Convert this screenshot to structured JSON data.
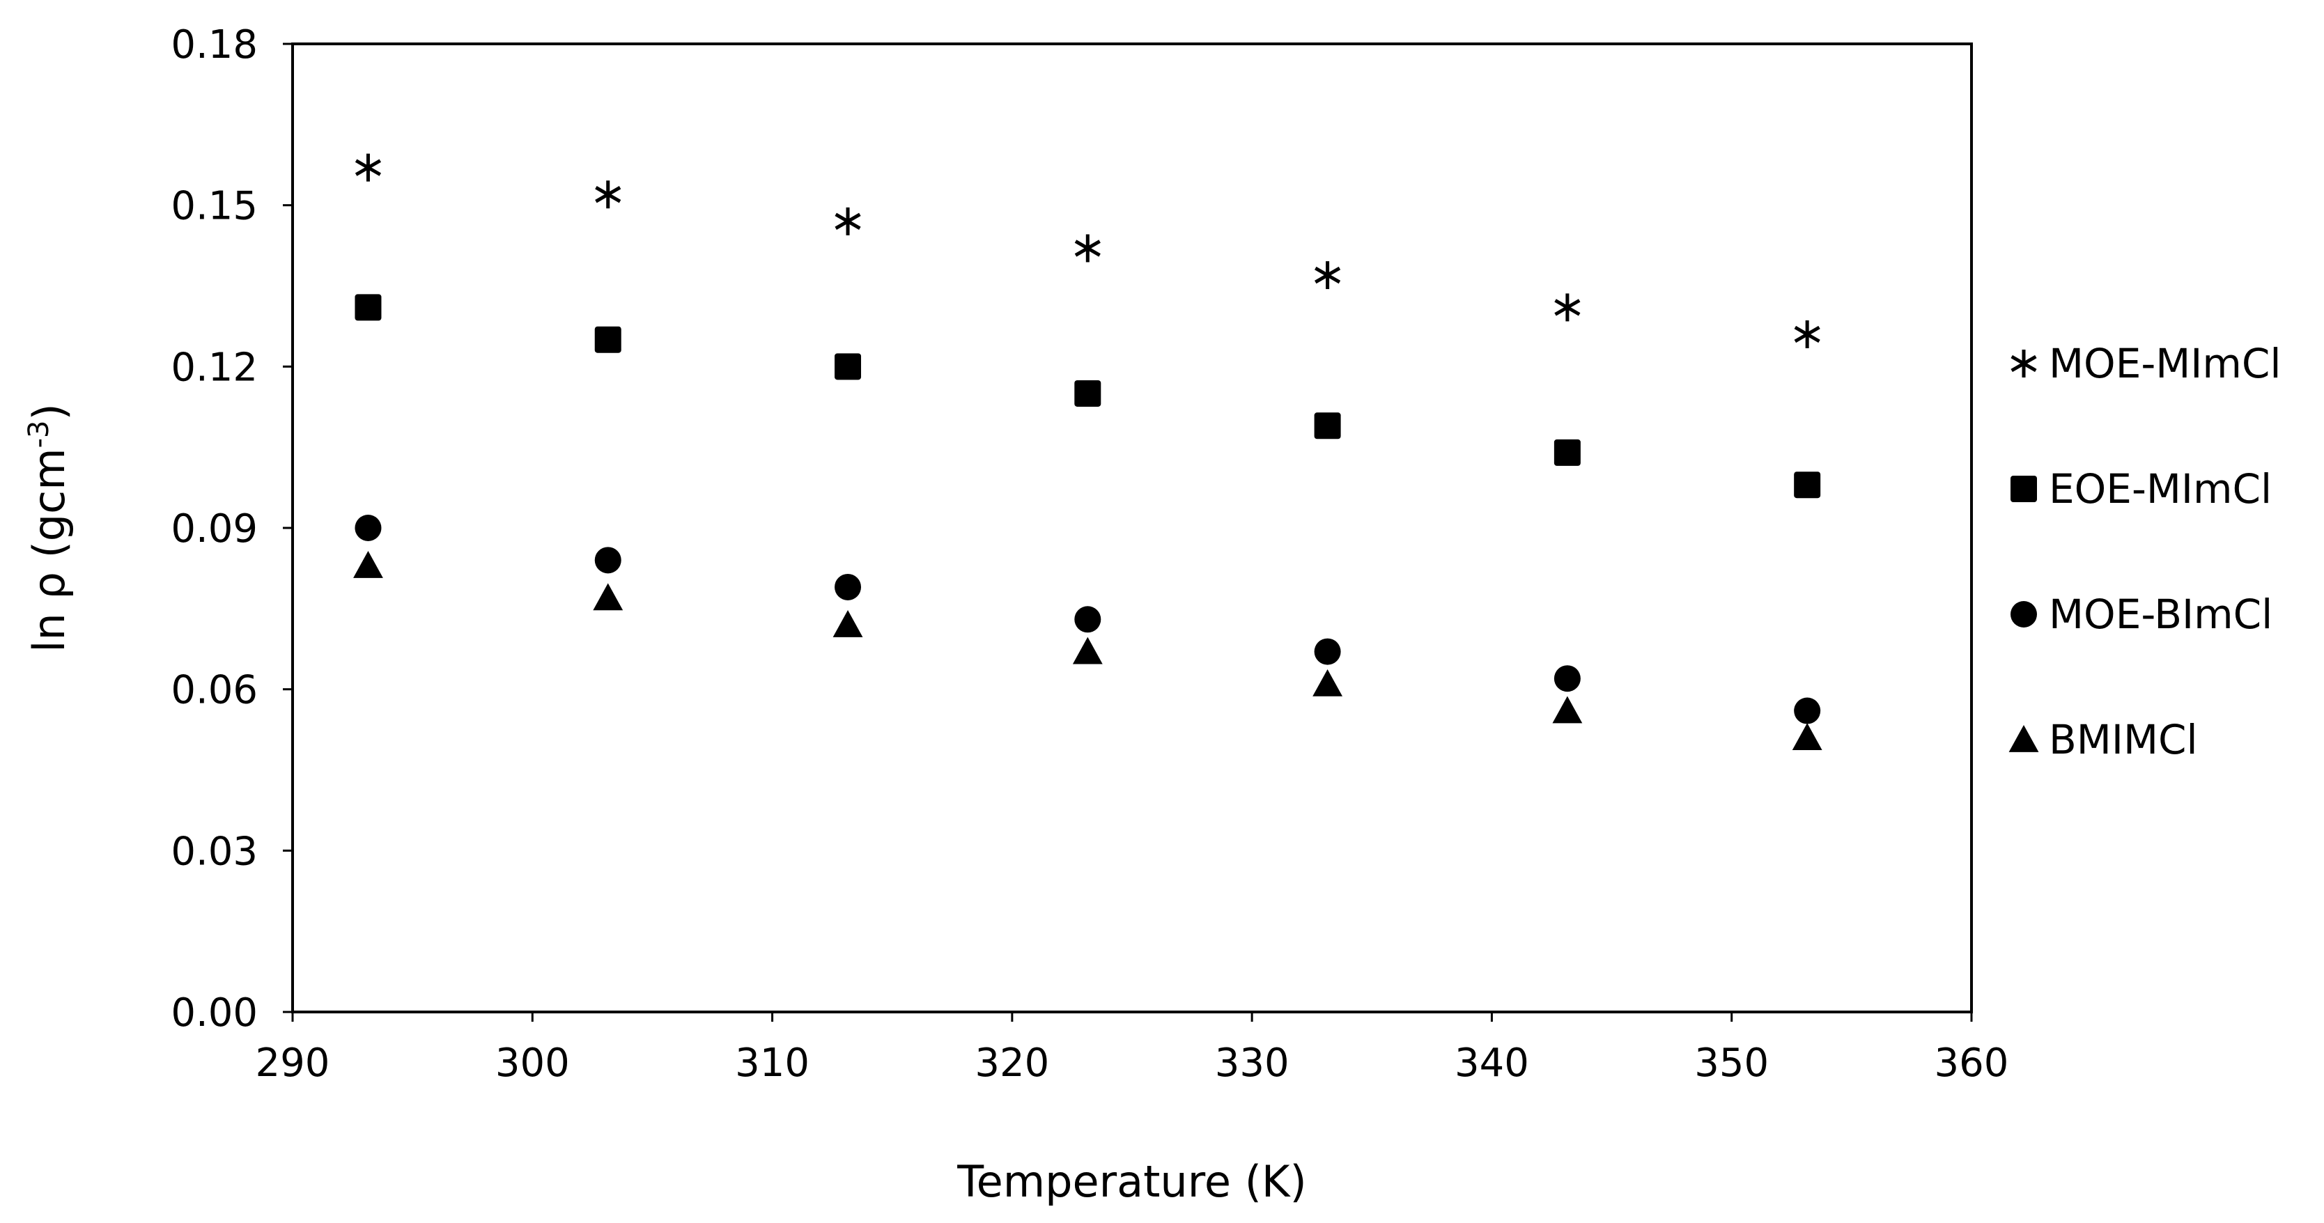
{
  "chart_data": {
    "type": "scatter",
    "title": "",
    "xlabel": "Temperature (K)",
    "ylabel": {
      "base": "ln ρ (gcm",
      "superscript": "-3",
      "suffix": ")"
    },
    "xlim": [
      290,
      360
    ],
    "ylim": [
      0,
      0.18
    ],
    "xticks": [
      290,
      300,
      310,
      320,
      330,
      340,
      350,
      360
    ],
    "yticks": [
      0.0,
      0.03,
      0.06,
      0.09,
      0.12,
      0.15,
      0.18
    ],
    "ytick_labels": [
      "0.00",
      "0.03",
      "0.06",
      "0.09",
      "0.12",
      "0.15",
      "0.18"
    ],
    "xtick_labels": [
      "290",
      "300",
      "310",
      "320",
      "330",
      "340",
      "350",
      "360"
    ],
    "grid": false,
    "legend_position": "right",
    "x": [
      293.15,
      303.15,
      313.15,
      323.15,
      333.15,
      343.15,
      353.15
    ],
    "series": [
      {
        "name": "MOE-MImCl",
        "marker": "asterisk",
        "values": [
          0.157,
          0.152,
          0.147,
          0.142,
          0.137,
          0.131,
          0.126
        ]
      },
      {
        "name": "EOE-MImCl",
        "marker": "square",
        "values": [
          0.131,
          0.125,
          0.12,
          0.115,
          0.109,
          0.104,
          0.098
        ]
      },
      {
        "name": "MOE-BImCl",
        "marker": "circle",
        "values": [
          0.09,
          0.084,
          0.079,
          0.073,
          0.067,
          0.062,
          0.056
        ]
      },
      {
        "name": "BMIMCl",
        "marker": "triangle",
        "values": [
          0.083,
          0.077,
          0.072,
          0.067,
          0.061,
          0.056,
          0.051
        ]
      }
    ],
    "colors": {
      "marker": "#000000",
      "axis": "#000000",
      "background": "#ffffff"
    }
  }
}
